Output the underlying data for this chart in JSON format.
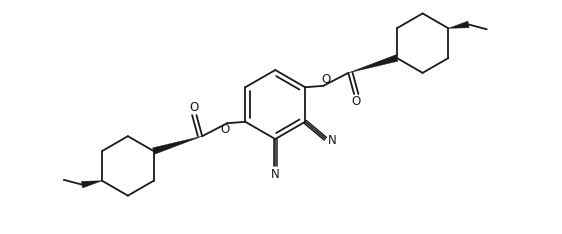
{
  "bg_color": "#ffffff",
  "line_color": "#1a1a1a",
  "line_width": 1.3,
  "fig_width": 5.62,
  "fig_height": 2.34,
  "dpi": 100,
  "xlim": [
    0,
    11.24
  ],
  "ylim": [
    -0.2,
    4.68
  ]
}
